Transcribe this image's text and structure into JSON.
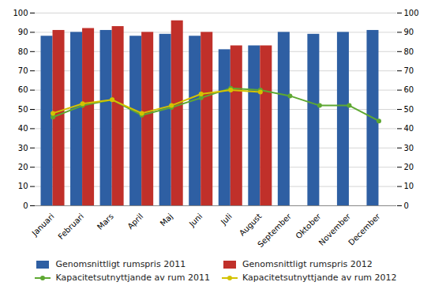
{
  "chart_data": {
    "type": "bar",
    "categories": [
      "Januari",
      "Februari",
      "Mars",
      "April",
      "Maj",
      "Juni",
      "Juli",
      "August",
      "September",
      "Oktober",
      "November",
      "December"
    ],
    "series": [
      {
        "name": "Genomsnittligt rumspris 2011",
        "type": "bar",
        "color": "#2E5FA3",
        "values": [
          88,
          90,
          91,
          88,
          89,
          88,
          81,
          83,
          90,
          89,
          90,
          91
        ]
      },
      {
        "name": "Genomsnittligt rumspris 2012",
        "type": "bar",
        "color": "#C0302A",
        "values": [
          91,
          92,
          93,
          90,
          96,
          90,
          83,
          83,
          null,
          null,
          null,
          null
        ]
      },
      {
        "name": "Kapacitetsutnyttjande av rum 2011",
        "type": "line",
        "marker": "circle",
        "axis": "y2",
        "color": "#5EA832",
        "values": [
          46,
          52,
          55,
          47,
          51,
          56,
          61,
          60,
          57,
          52,
          52,
          44
        ]
      },
      {
        "name": "Kapacitetsutnyttjande av rum 2012",
        "type": "line",
        "marker": "circle",
        "axis": "y2",
        "color": "#D4C200",
        "values": [
          48,
          53,
          55,
          48,
          52,
          58,
          60,
          59,
          null,
          null,
          null,
          null
        ]
      }
    ],
    "ylim": [
      0,
      100
    ],
    "yticks": [
      0,
      10,
      20,
      30,
      40,
      50,
      60,
      70,
      80,
      90,
      100
    ],
    "y2lim": [
      0,
      100
    ],
    "y2ticks": [
      0,
      10,
      20,
      30,
      40,
      50,
      60,
      70,
      80,
      90,
      100
    ],
    "grid": true,
    "legend": "bottom"
  }
}
